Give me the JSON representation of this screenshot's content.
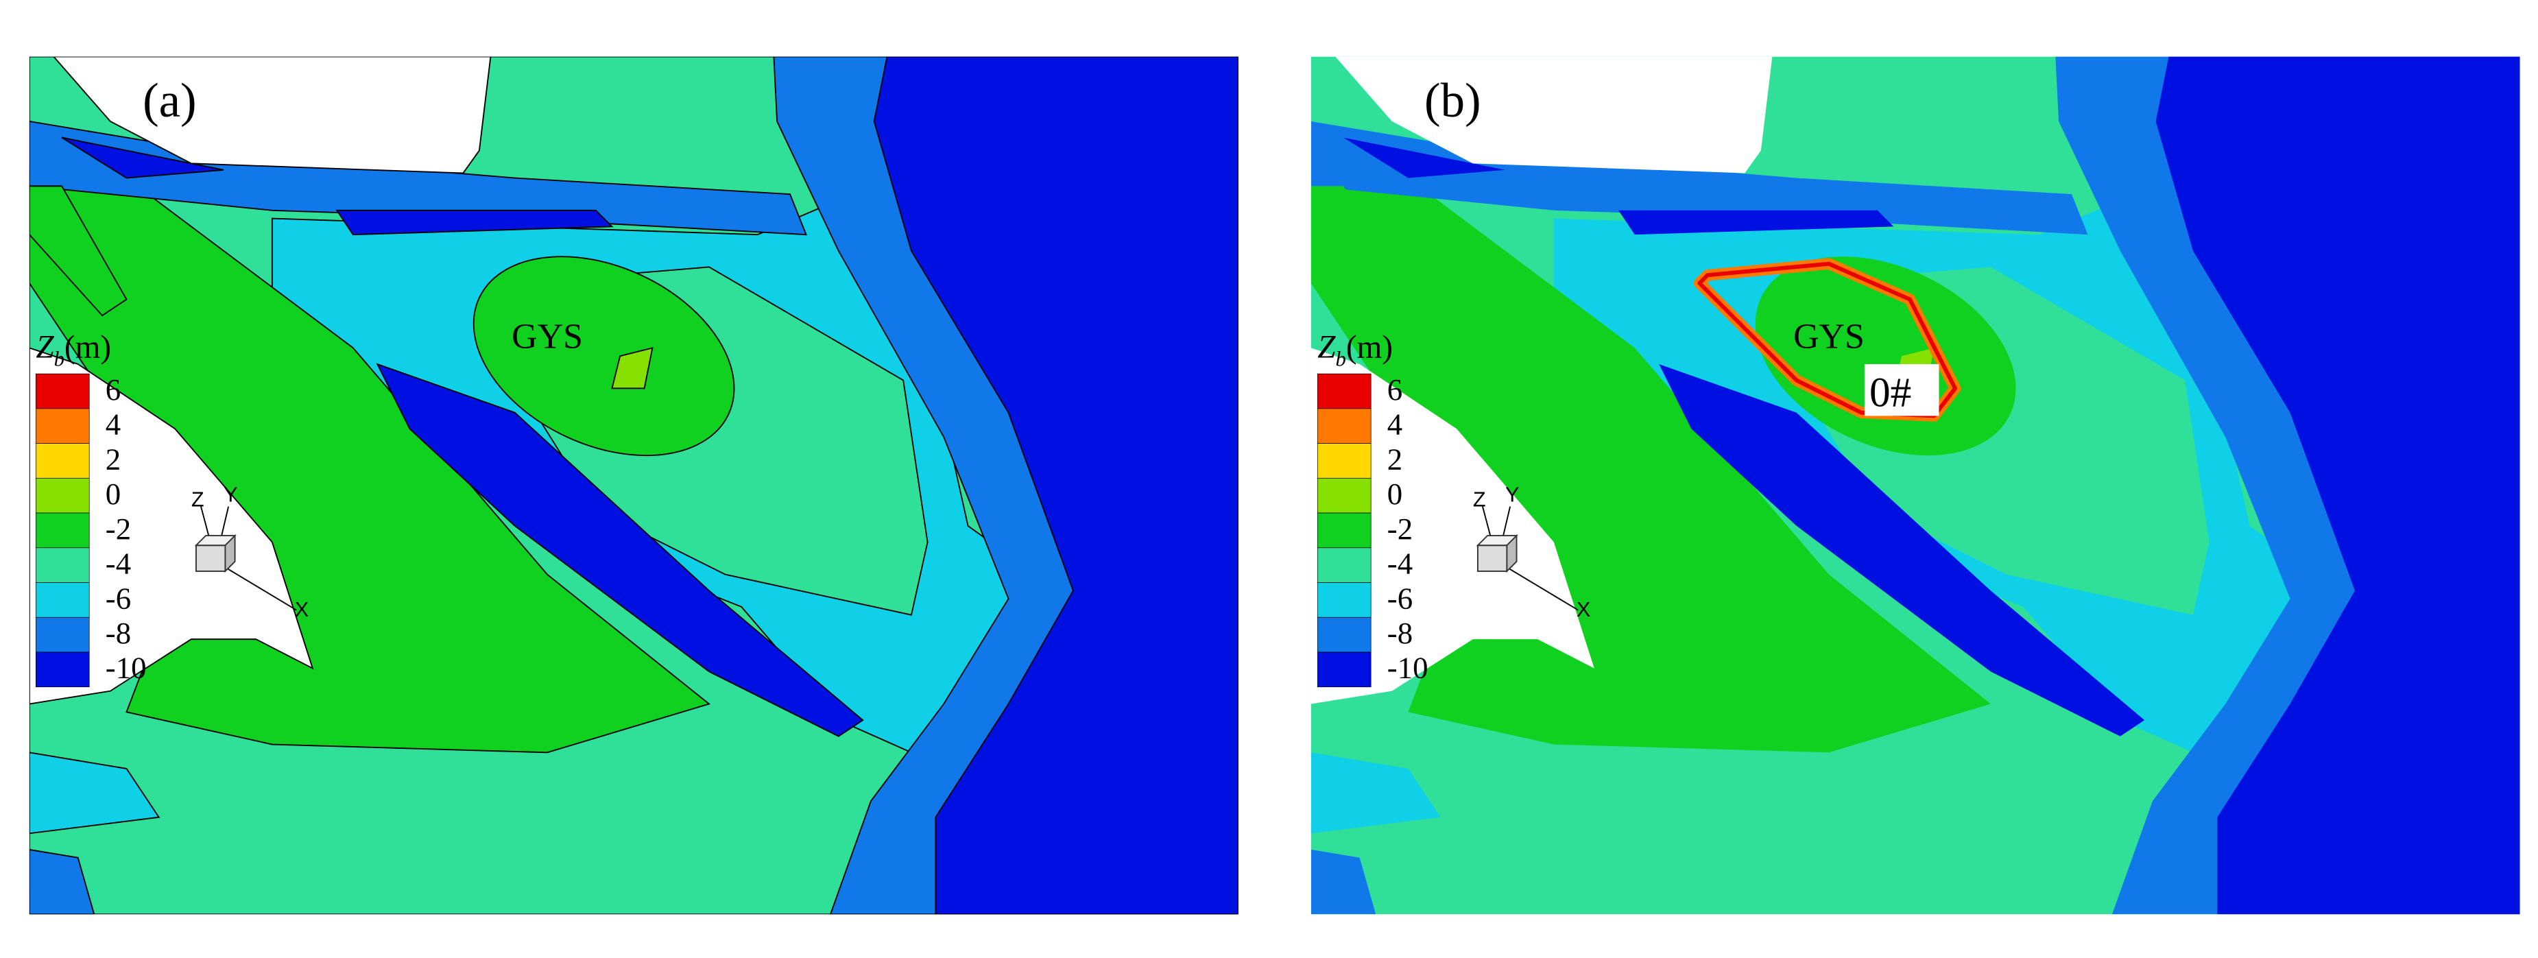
{
  "panels": [
    {
      "label": "(a)",
      "site_label": "GYS"
    },
    {
      "label": "(b)",
      "site_label": "GYS",
      "structure_label": "0#"
    }
  ],
  "legend": {
    "symbol": "Z",
    "subscript": "b",
    "unit": "(m)",
    "levels": [
      6,
      4,
      2,
      0,
      -2,
      -4,
      -6,
      -8,
      -10
    ],
    "colors": [
      "#e80000",
      "#ff7800",
      "#ffd800",
      "#86e000",
      "#10d020",
      "#30e098",
      "#10d0e8",
      "#1078e8",
      "#0010e0"
    ]
  },
  "axes_triad": {
    "x": "X",
    "y": "Y",
    "z": "Z"
  }
}
